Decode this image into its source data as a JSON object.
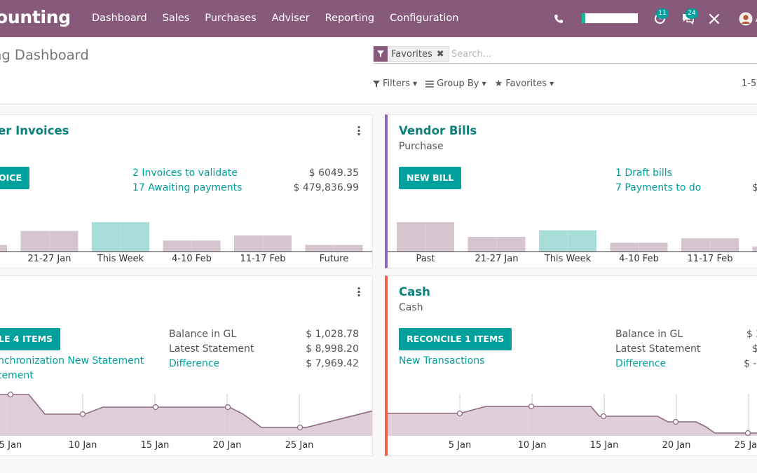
{
  "topbar": {
    "app_title": "ounting",
    "menu": [
      "Dashboard",
      "Sales",
      "Purchases",
      "Adviser",
      "Reporting",
      "Configuration"
    ],
    "activity_count": "11",
    "messages_count": "24",
    "user_initial": "A"
  },
  "control": {
    "page_title": "ng Dashboard",
    "facet_label": "Favorites",
    "search_placeholder": "Search...",
    "filters_label": "Filters",
    "groupby_label": "Group By",
    "favorites_label": "Favorites",
    "pager": "1-5"
  },
  "cards": {
    "customer_invoices": {
      "title": "er Invoices",
      "button": "OICE",
      "links": [
        "2 Invoices to validate",
        "17 Awaiting payments"
      ],
      "amounts": [
        "$ 6049.35",
        "$ 479,836.99"
      ],
      "chart": {
        "categories": [
          "",
          "21-27 Jan",
          "This Week",
          "4-10 Feb",
          "11-17 Feb",
          "Future"
        ],
        "values": [
          9,
          28,
          40,
          15,
          22,
          9
        ]
      }
    },
    "vendor_bills": {
      "title": "Vendor Bills",
      "subtitle": "Purchase",
      "button": "NEW BILL",
      "links": [
        "1 Draft bills",
        "7 Payments to do"
      ],
      "amounts": [
        "$"
      ],
      "chart": {
        "categories": [
          "Past",
          "21-27 Jan",
          "This Week",
          "4-10 Feb",
          "11-17 Feb",
          ""
        ],
        "values": [
          40,
          20,
          29,
          12,
          18,
          7
        ]
      }
    },
    "bank": {
      "button": "LE 4 ITEMS",
      "links": [
        "nchronization New Statement",
        "tement"
      ],
      "labels": [
        "Balance in GL",
        "Latest Statement"
      ],
      "difference_label": "Difference",
      "amounts": [
        "$ 1,028.78",
        "$ 8,998.20",
        "$ 7,969.42"
      ],
      "chart": {
        "tick_labels": [
          "5 Jan",
          "10 Jan",
          "15 Jan",
          "20 Jan",
          "25 Jan"
        ]
      }
    },
    "cash": {
      "title": "Cash",
      "subtitle": "Cash",
      "button": "RECONCILE 1 ITEMS",
      "link": "New Transactions",
      "labels": [
        "Balance in GL",
        "Latest Statement"
      ],
      "difference_label": "Difference",
      "amounts": [
        "$ 2",
        "$",
        "$ -"
      ],
      "chart": {
        "tick_labels": [
          "5 Jan",
          "10 Jan",
          "15 Jan",
          "20 Jan",
          "25 Jan"
        ]
      }
    }
  },
  "colors": {
    "brand": "#875a7b",
    "teal": "#00a09d",
    "bar_past": "#d6c5cf",
    "bar_current": "#a7deda",
    "area": "#d9c7d1",
    "purchase_border": "#8e66bd",
    "cash_border": "#f0604d"
  }
}
